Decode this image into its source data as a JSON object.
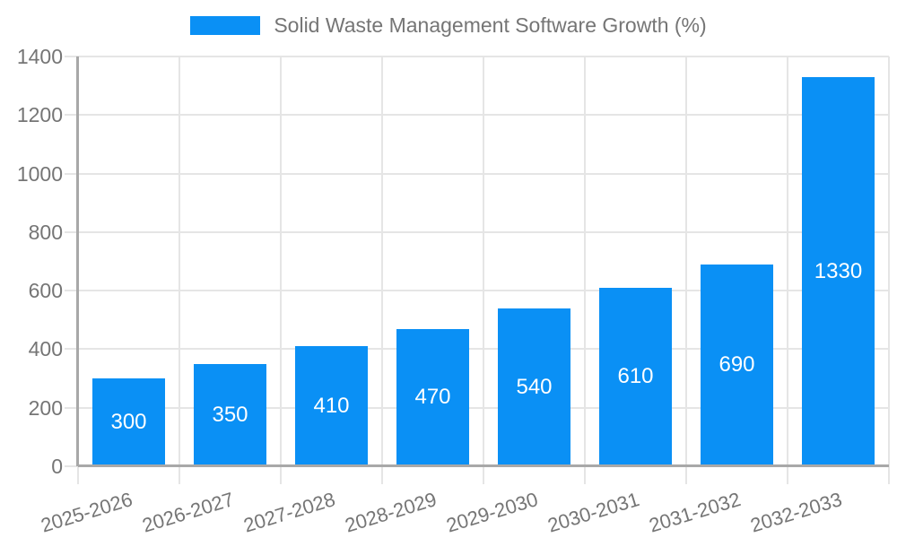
{
  "legend": {
    "label": "Solid Waste Management Software Growth (%)"
  },
  "chart_data": {
    "type": "bar",
    "title": "",
    "legend_entries": [
      "Solid Waste Management Software Growth (%)"
    ],
    "legend_position": "top-center",
    "categories": [
      "2025-2026",
      "2026-2027",
      "2027-2028",
      "2028-2029",
      "2029-2030",
      "2030-2031",
      "2031-2032",
      "2032-2033"
    ],
    "series": [
      {
        "name": "Solid Waste Management Software Growth (%)",
        "values": [
          300,
          350,
          410,
          470,
          540,
          610,
          690,
          1330
        ]
      }
    ],
    "value_labels": [
      300,
      350,
      410,
      470,
      540,
      610,
      690,
      1330
    ],
    "value_label_position": "inside-center",
    "xlabel": "",
    "ylabel": "",
    "ylim": [
      0,
      1400
    ],
    "yticks": [
      0,
      200,
      400,
      600,
      800,
      1000,
      1200,
      1400
    ],
    "grid": true,
    "x_label_rotation_deg": -17
  },
  "colors": {
    "bar": "#0a90f5",
    "text": "#757575",
    "value_label_text": "#ffffff",
    "gridline": "#e5e5e5",
    "axis": "#a8a8a8",
    "background": "#ffffff"
  }
}
